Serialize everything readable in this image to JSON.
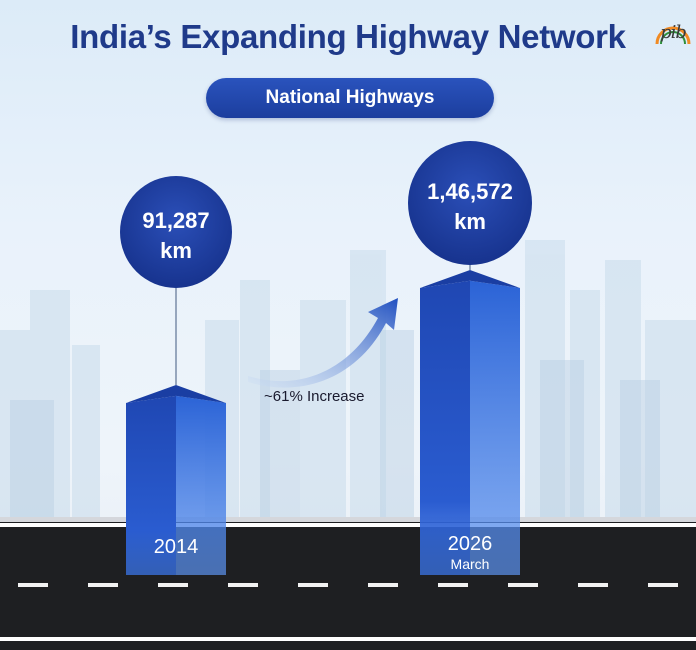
{
  "title": "India’s Expanding Highway Network",
  "subtitle_pill": "National Highways",
  "logo_text": "pib",
  "increase_label": "~61% Increase",
  "colors": {
    "title": "#1f3a8a",
    "bar": "#1f47b3",
    "circle": "#1c3a9c",
    "road": "#1e1f22"
  },
  "chart_data": {
    "type": "bar",
    "title": "India’s Expanding Highway Network",
    "subtitle": "National Highways",
    "unit": "km",
    "categories": [
      "2014",
      "2026"
    ],
    "category_sublabels": [
      "",
      "March"
    ],
    "values": [
      91287,
      146572
    ],
    "value_labels": [
      "91,287",
      "1,46,572"
    ],
    "annotation": "~61% Increase"
  }
}
